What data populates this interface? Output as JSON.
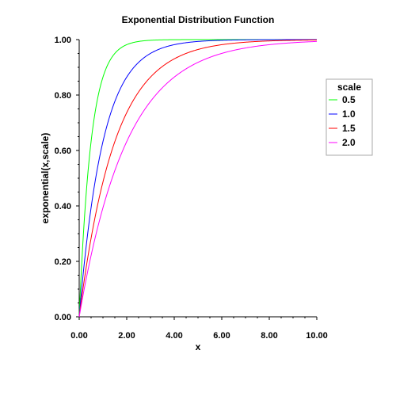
{
  "chart_data": {
    "type": "line",
    "title": "Exponential Distribution Function",
    "xlabel": "x",
    "ylabel": "exponential(x,scale)",
    "xlim": [
      0,
      10
    ],
    "ylim": [
      0,
      1
    ],
    "x_ticks": [
      "0.00",
      "2.00",
      "4.00",
      "6.00",
      "8.00",
      "10.00"
    ],
    "y_ticks": [
      "0.00",
      "0.20",
      "0.40",
      "0.60",
      "0.80",
      "1.00"
    ],
    "grid": false,
    "legend": {
      "title": "scale",
      "position": "right"
    },
    "function": "1 - exp(-x / scale)",
    "x": [
      0,
      0.25,
      0.5,
      0.75,
      1,
      1.5,
      2,
      2.5,
      3,
      3.5,
      4,
      5,
      6,
      7,
      8,
      9,
      10
    ],
    "series": [
      {
        "name": "0.5",
        "color": "#00ff00",
        "values": [
          0,
          0.393,
          0.632,
          0.777,
          0.865,
          0.95,
          0.982,
          0.993,
          0.998,
          0.999,
          1,
          1,
          1,
          1,
          1,
          1,
          1
        ]
      },
      {
        "name": "1.0",
        "color": "#0000ff",
        "values": [
          0,
          0.221,
          0.393,
          0.528,
          0.632,
          0.777,
          0.865,
          0.918,
          0.95,
          0.97,
          0.982,
          0.993,
          0.998,
          0.999,
          1,
          1,
          1
        ]
      },
      {
        "name": "1.5",
        "color": "#ff0000",
        "values": [
          0,
          0.154,
          0.283,
          0.393,
          0.487,
          0.632,
          0.736,
          0.811,
          0.865,
          0.903,
          0.931,
          0.964,
          0.982,
          0.991,
          0.995,
          0.998,
          0.999
        ]
      },
      {
        "name": "2.0",
        "color": "#ff00ff",
        "values": [
          0,
          0.118,
          0.221,
          0.313,
          0.393,
          0.528,
          0.632,
          0.713,
          0.777,
          0.826,
          0.865,
          0.918,
          0.95,
          0.97,
          0.982,
          0.989,
          0.993
        ]
      }
    ]
  }
}
